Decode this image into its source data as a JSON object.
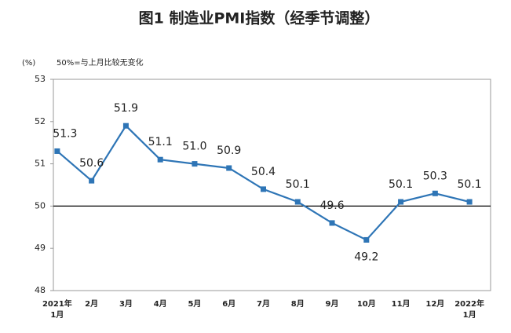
{
  "chart_data": {
    "type": "line",
    "title": "图1 制造业PMI指数（经季节调整）",
    "y_unit_label": "(%)",
    "annotation": "50%=与上月比较无变化",
    "categories": [
      [
        "2021年",
        "1月"
      ],
      [
        "2月"
      ],
      [
        "3月"
      ],
      [
        "4月"
      ],
      [
        "5月"
      ],
      [
        "6月"
      ],
      [
        "7月"
      ],
      [
        "8月"
      ],
      [
        "9月"
      ],
      [
        "10月"
      ],
      [
        "11月"
      ],
      [
        "12月"
      ],
      [
        "2022年",
        "1月"
      ]
    ],
    "series": [
      {
        "name": "制造业PMI",
        "color": "#2e75b6",
        "values": [
          51.3,
          50.6,
          51.9,
          51.1,
          51.0,
          50.9,
          50.4,
          50.1,
          49.6,
          49.2,
          50.1,
          50.3,
          50.1
        ],
        "value_labels": [
          "51.3",
          "50.6",
          "51.9",
          "51.1",
          "51.0",
          "50.9",
          "50.4",
          "50.1",
          "49.6",
          "49.2",
          "50.1",
          "50.3",
          "50.1"
        ]
      }
    ],
    "ylim": [
      48,
      53
    ],
    "yticks": [
      48,
      49,
      50,
      51,
      52,
      53
    ],
    "reference_line": 50
  }
}
